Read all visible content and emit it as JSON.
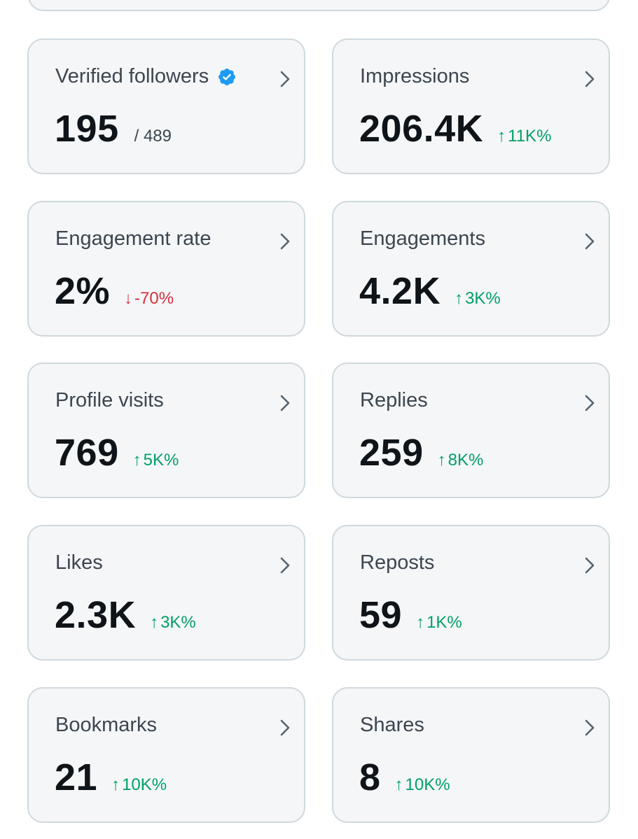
{
  "cards": {
    "verified_followers": {
      "title": "Verified followers",
      "value": "195",
      "sub": "/ 489"
    },
    "impressions": {
      "title": "Impressions",
      "value": "206.4K",
      "arrow": "↑",
      "change": "11K%"
    },
    "engagement_rate": {
      "title": "Engagement rate",
      "value": "2%",
      "arrow": "↓",
      "change": "-70%"
    },
    "engagements": {
      "title": "Engagements",
      "value": "4.2K",
      "arrow": "↑",
      "change": "3K%"
    },
    "profile_visits": {
      "title": "Profile visits",
      "value": "769",
      "arrow": "↑",
      "change": "5K%"
    },
    "replies": {
      "title": "Replies",
      "value": "259",
      "arrow": "↑",
      "change": "8K%"
    },
    "likes": {
      "title": "Likes",
      "value": "2.3K",
      "arrow": "↑",
      "change": "3K%"
    },
    "reposts": {
      "title": "Reposts",
      "value": "59",
      "arrow": "↑",
      "change": "1K%"
    },
    "bookmarks": {
      "title": "Bookmarks",
      "value": "21",
      "arrow": "↑",
      "change": "10K%"
    },
    "shares": {
      "title": "Shares",
      "value": "8",
      "arrow": "↑",
      "change": "10K%"
    }
  },
  "colors": {
    "positive": "#00a067",
    "negative": "#d6303f",
    "verified_badge": "#1d9bf0",
    "card_bg": "#f5f6f7",
    "card_border": "#cfd9de"
  },
  "icons": {
    "badge": "verified-badge-icon",
    "chevron": "chevron-right-icon"
  }
}
